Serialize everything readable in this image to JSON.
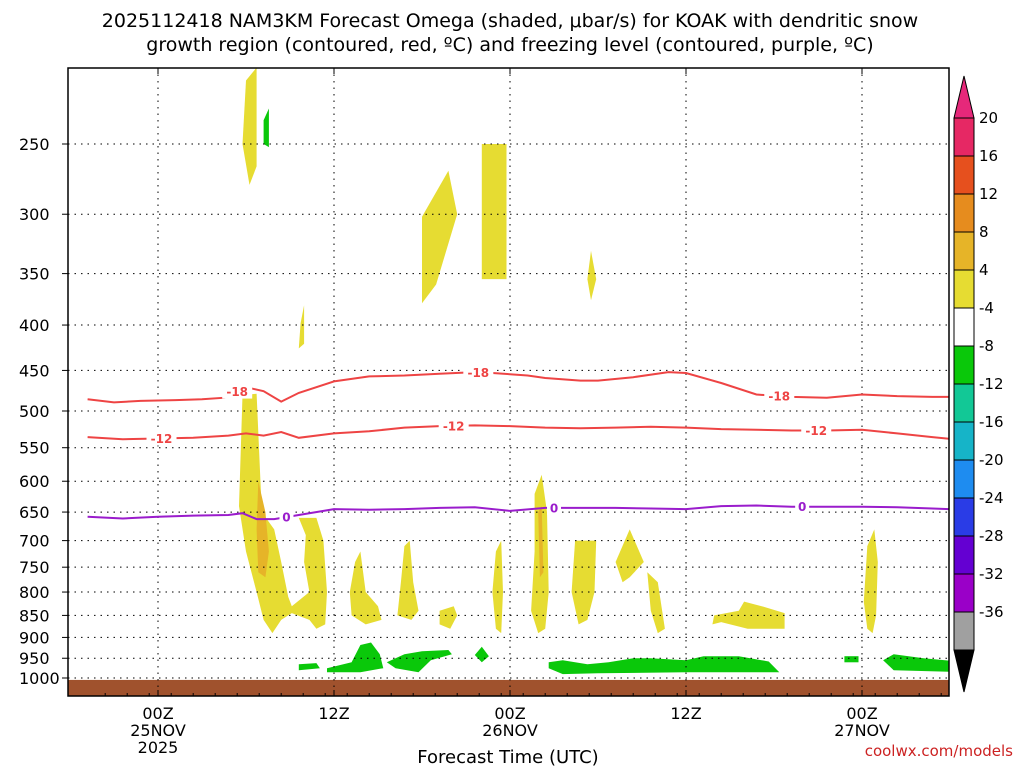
{
  "chart_data": {
    "type": "heatmap",
    "title_line1": "2025112418 NAM3KM Forecast Omega (shaded, μbar/s) for KOAK with dendritic snow",
    "title_line2": "growth region (contoured, red, ºC) and freezing level (contoured, purple, ºC)",
    "xlabel": "Forecast Time (UTC)",
    "ylabel": "",
    "credit": "coolwx.com/models",
    "ylim": [
      1020,
      200
    ],
    "xlim": [
      -4,
      46
    ],
    "y_ticks": [
      250,
      300,
      350,
      400,
      450,
      500,
      550,
      600,
      650,
      700,
      750,
      800,
      850,
      900,
      950,
      1000
    ],
    "y_tick_labels": [
      "250",
      "300",
      "350",
      "400",
      "450",
      "500",
      "550",
      "600",
      "650",
      "700",
      "750",
      "800",
      "850",
      "900",
      "950",
      "1000"
    ],
    "x_ticks": [
      {
        "hour": 0,
        "l1": "00Z",
        "l2": "25NOV",
        "l3": "2025"
      },
      {
        "hour": 10,
        "l1": "12Z",
        "l2": "",
        "l3": ""
      },
      {
        "hour": 20,
        "l1": "00Z",
        "l2": "26NOV",
        "l3": ""
      },
      {
        "hour": 30,
        "l1": "12Z",
        "l2": "",
        "l3": ""
      },
      {
        "hour": 40,
        "l1": "00Z",
        "l2": "27NOV",
        "l3": ""
      }
    ],
    "colorbar": {
      "colors": [
        "#a0a0a0",
        "#9a00c8",
        "#6400d2",
        "#2a3ce6",
        "#1e8cf0",
        "#16b4c8",
        "#12c896",
        "#0ac80a",
        "#ffffff",
        "#e6dc32",
        "#e6b428",
        "#e68c1e",
        "#e6501e",
        "#e62864"
      ],
      "labels": [
        "-36",
        "-32",
        "-28",
        "-24",
        "-20",
        "-16",
        "-12",
        "-8",
        "-4",
        "4",
        "8",
        "12",
        "16",
        "20"
      ]
    },
    "series": [
      {
        "name": "-18",
        "color": "#ee4444",
        "x": [
          -4,
          -2.5,
          -1,
          1,
          2.5,
          3.8,
          5,
          6,
          7,
          8,
          10,
          12,
          14,
          16,
          18,
          19,
          21,
          22,
          24,
          25,
          27,
          29,
          30,
          32,
          34,
          36,
          38,
          40,
          42,
          44,
          46
        ],
        "y": [
          485,
          489,
          487,
          486,
          485,
          483,
          470,
          475,
          488,
          477,
          463,
          457,
          456,
          454,
          452,
          453,
          456,
          459,
          462,
          462,
          458,
          452,
          453,
          465,
          479,
          482,
          483,
          479,
          481,
          482,
          482
        ],
        "labels": [
          {
            "x": 4.5,
            "text": "-18"
          },
          {
            "x": 18.2,
            "text": "-18"
          },
          {
            "x": 35.3,
            "text": "-18"
          }
        ]
      },
      {
        "name": "-12",
        "color": "#ee4444",
        "x": [
          -4,
          -2,
          0,
          2,
          4,
          5,
          6,
          7,
          8,
          10,
          12,
          14,
          16,
          18,
          20,
          22,
          24,
          26,
          28,
          30,
          32,
          34,
          36,
          38,
          40,
          42,
          44,
          46
        ],
        "y": [
          535,
          538,
          537,
          536,
          533,
          530,
          533,
          528,
          536,
          530,
          527,
          522,
          520,
          519,
          520,
          522,
          523,
          522,
          521,
          522,
          524,
          525,
          526,
          526,
          525,
          530,
          535,
          540
        ],
        "labels": [
          {
            "x": 0.2,
            "text": "-12"
          },
          {
            "x": 16.8,
            "text": "-12"
          },
          {
            "x": 37.4,
            "text": "-12"
          }
        ]
      },
      {
        "name": "0",
        "color": "#9a1ccc",
        "x": [
          -4,
          -2,
          0,
          2,
          4,
          4.8,
          5.6,
          6.6,
          8,
          10,
          12,
          14,
          16,
          18,
          20,
          22,
          24,
          26,
          28,
          30,
          32,
          34,
          36,
          38,
          40,
          42,
          44,
          46
        ],
        "y": [
          658,
          661,
          658,
          656,
          655,
          652,
          662,
          662,
          655,
          645,
          646,
          645,
          643,
          642,
          648,
          643,
          643,
          643,
          644,
          645,
          640,
          639,
          641,
          641,
          641,
          642,
          644,
          646
        ],
        "labels": [
          {
            "x": 7.3,
            "text": "0"
          },
          {
            "x": 22.5,
            "text": "0"
          },
          {
            "x": 36.6,
            "text": "0"
          }
        ]
      }
    ],
    "regions": [
      {
        "color": "#e6dc32",
        "pts": [
          [
            5,
            212
          ],
          [
            5.6,
            205
          ],
          [
            5.6,
            265
          ],
          [
            5.2,
            278
          ],
          [
            4.8,
            250
          ]
        ]
      },
      {
        "color": "#0ac80a",
        "pts": [
          [
            6.0,
            235
          ],
          [
            6.3,
            228
          ],
          [
            6.3,
            252
          ],
          [
            6.0,
            250
          ]
        ]
      },
      {
        "color": "#e6dc32",
        "pts": [
          [
            15,
            302
          ],
          [
            16.5,
            268
          ],
          [
            17,
            300
          ],
          [
            15.8,
            360
          ],
          [
            15,
            378
          ]
        ]
      },
      {
        "color": "#e6dc32",
        "pts": [
          [
            18.4,
            250
          ],
          [
            19.8,
            250
          ],
          [
            19.8,
            355
          ],
          [
            18.4,
            355
          ]
        ]
      },
      {
        "color": "#e6dc32",
        "pts": [
          [
            24.6,
            330
          ],
          [
            24.9,
            355
          ],
          [
            24.6,
            375
          ],
          [
            24.4,
            355
          ]
        ]
      },
      {
        "color": "#e6dc32",
        "pts": [
          [
            8.1,
            398
          ],
          [
            8.3,
            380
          ],
          [
            8.3,
            420
          ],
          [
            8.0,
            425
          ]
        ]
      },
      {
        "color": "#e6dc32",
        "pts": [
          [
            4.8,
            480
          ],
          [
            5.6,
            478
          ],
          [
            5.9,
            650
          ],
          [
            6.6,
            680
          ],
          [
            7,
            740
          ],
          [
            7.4,
            810
          ],
          [
            7.6,
            830
          ],
          [
            8.6,
            800
          ],
          [
            8.3,
            740
          ],
          [
            8.4,
            690
          ],
          [
            8.0,
            660
          ],
          [
            9.0,
            660
          ],
          [
            9.4,
            700
          ],
          [
            9.6,
            800
          ],
          [
            9.5,
            870
          ],
          [
            9.0,
            880
          ],
          [
            8.6,
            860
          ],
          [
            7.6,
            845
          ],
          [
            7.0,
            860
          ],
          [
            6.5,
            890
          ],
          [
            6.0,
            860
          ],
          [
            5.6,
            800
          ],
          [
            5.0,
            720
          ],
          [
            4.6,
            640
          ]
        ]
      },
      {
        "color": "#e6b428",
        "pts": [
          [
            5.7,
            600
          ],
          [
            6.1,
            650
          ],
          [
            6.3,
            720
          ],
          [
            6.1,
            770
          ],
          [
            5.7,
            760
          ],
          [
            5.6,
            680
          ]
        ]
      },
      {
        "color": "#e6dc32",
        "pts": [
          [
            11.2,
            740
          ],
          [
            11.5,
            720
          ],
          [
            11.8,
            800
          ],
          [
            12.5,
            830
          ],
          [
            12.7,
            860
          ],
          [
            11.8,
            870
          ],
          [
            11.0,
            850
          ],
          [
            10.9,
            800
          ]
        ]
      },
      {
        "color": "#e6dc32",
        "pts": [
          [
            14,
            710
          ],
          [
            14.3,
            700
          ],
          [
            14.5,
            780
          ],
          [
            14.8,
            840
          ],
          [
            14.4,
            860
          ],
          [
            13.6,
            850
          ],
          [
            13.8,
            780
          ]
        ]
      },
      {
        "color": "#e6dc32",
        "pts": [
          [
            16.0,
            840
          ],
          [
            16.8,
            830
          ],
          [
            17.0,
            850
          ],
          [
            16.6,
            880
          ],
          [
            16.0,
            870
          ]
        ]
      },
      {
        "color": "#e6dc32",
        "pts": [
          [
            19.2,
            720
          ],
          [
            19.5,
            700
          ],
          [
            19.6,
            800
          ],
          [
            19.5,
            890
          ],
          [
            19.2,
            880
          ],
          [
            19.0,
            800
          ]
        ]
      },
      {
        "color": "#e6dc32",
        "pts": [
          [
            21.4,
            620
          ],
          [
            21.8,
            590
          ],
          [
            22.1,
            650
          ],
          [
            22.2,
            800
          ],
          [
            22.0,
            880
          ],
          [
            21.6,
            890
          ],
          [
            21.2,
            840
          ],
          [
            21.4,
            720
          ]
        ]
      },
      {
        "color": "#e6b428",
        "pts": [
          [
            21.6,
            650
          ],
          [
            21.8,
            640
          ],
          [
            21.9,
            760
          ],
          [
            21.7,
            770
          ]
        ]
      },
      {
        "color": "#e6dc32",
        "pts": [
          [
            23.7,
            700
          ],
          [
            24.9,
            700
          ],
          [
            24.8,
            800
          ],
          [
            24.4,
            860
          ],
          [
            23.9,
            870
          ],
          [
            23.5,
            800
          ]
        ]
      },
      {
        "color": "#e6dc32",
        "pts": [
          [
            26.0,
            740
          ],
          [
            26.8,
            680
          ],
          [
            27.6,
            740
          ],
          [
            26.8,
            770
          ],
          [
            26.4,
            780
          ]
        ]
      },
      {
        "color": "#e6dc32",
        "pts": [
          [
            27.8,
            760
          ],
          [
            28.4,
            780
          ],
          [
            28.8,
            880
          ],
          [
            28.4,
            890
          ],
          [
            28.0,
            840
          ]
        ]
      },
      {
        "color": "#e6dc32",
        "pts": [
          [
            31.6,
            850
          ],
          [
            33.0,
            840
          ],
          [
            33.3,
            820
          ],
          [
            34.3,
            830
          ],
          [
            35.6,
            845
          ],
          [
            35.6,
            880
          ],
          [
            33.5,
            880
          ],
          [
            32.0,
            865
          ],
          [
            31.5,
            870
          ]
        ]
      },
      {
        "color": "#e6dc32",
        "pts": [
          [
            40.3,
            710
          ],
          [
            40.7,
            680
          ],
          [
            40.9,
            740
          ],
          [
            40.8,
            850
          ],
          [
            40.6,
            890
          ],
          [
            40.3,
            880
          ],
          [
            40.1,
            820
          ]
        ]
      },
      {
        "color": "#0ac80a",
        "pts": [
          [
            8.0,
            965
          ],
          [
            9.0,
            962
          ],
          [
            9.2,
            975
          ],
          [
            8.0,
            980
          ]
        ]
      },
      {
        "color": "#0ac80a",
        "pts": [
          [
            9.6,
            975
          ],
          [
            11,
            960
          ],
          [
            11.5,
            918
          ],
          [
            12.1,
            912
          ],
          [
            12.6,
            940
          ],
          [
            12.8,
            975
          ],
          [
            11.5,
            985
          ],
          [
            9.6,
            985
          ]
        ]
      },
      {
        "color": "#0ac80a",
        "pts": [
          [
            13.0,
            960
          ],
          [
            14.0,
            940
          ],
          [
            15.0,
            933
          ],
          [
            16.5,
            930
          ],
          [
            16.7,
            940
          ],
          [
            15.5,
            955
          ],
          [
            14.8,
            985
          ],
          [
            13.5,
            975
          ]
        ]
      },
      {
        "color": "#0ac80a",
        "pts": [
          [
            18.0,
            942
          ],
          [
            18.4,
            922
          ],
          [
            18.8,
            945
          ],
          [
            18.4,
            960
          ]
        ]
      },
      {
        "color": "#0ac80a",
        "pts": [
          [
            22.2,
            960
          ],
          [
            23.0,
            955
          ],
          [
            24.4,
            965
          ],
          [
            25.6,
            960
          ],
          [
            27,
            950
          ],
          [
            28,
            950
          ],
          [
            30,
            955
          ],
          [
            31,
            945
          ],
          [
            33,
            945
          ],
          [
            34.7,
            958
          ],
          [
            35.3,
            985
          ],
          [
            30,
            985
          ],
          [
            25,
            988
          ],
          [
            23,
            990
          ],
          [
            22.2,
            975
          ]
        ]
      },
      {
        "color": "#0ac80a",
        "pts": [
          [
            39.0,
            945
          ],
          [
            39.8,
            945
          ],
          [
            39.8,
            960
          ],
          [
            39.0,
            960
          ]
        ]
      },
      {
        "color": "#0ac80a",
        "pts": [
          [
            41.2,
            955
          ],
          [
            41.8,
            940
          ],
          [
            43.5,
            950
          ],
          [
            46,
            960
          ],
          [
            46,
            985
          ],
          [
            41.8,
            980
          ]
        ]
      }
    ],
    "ground": {
      "color": "#a0522d",
      "top": 1005,
      "bottom": 1020
    }
  }
}
